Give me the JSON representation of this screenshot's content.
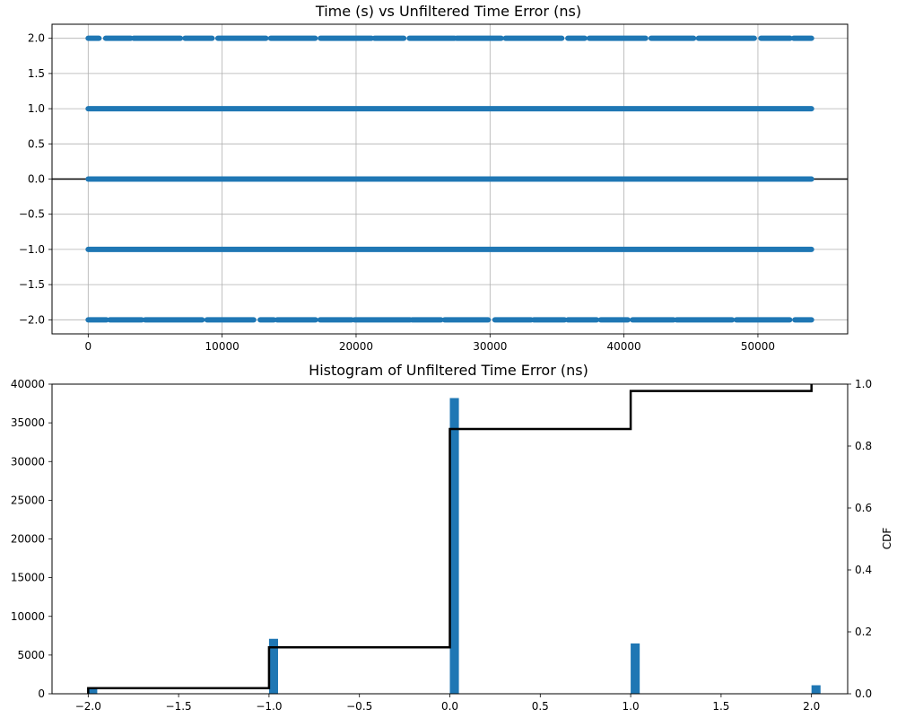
{
  "chart_data": [
    {
      "type": "scatter",
      "title": "Time (s) vs Unfiltered Time Error (ns)",
      "xlabel": "",
      "ylabel": "",
      "xlim": [
        -2700,
        56700
      ],
      "ylim": [
        -2.2,
        2.2
      ],
      "x_ticks": [
        0,
        10000,
        20000,
        30000,
        40000,
        50000
      ],
      "y_ticks": [
        -2.0,
        -1.5,
        -1.0,
        -0.5,
        0.0,
        0.5,
        1.0,
        1.5,
        2.0
      ],
      "grid": true,
      "zero_line": 0.0,
      "series": [
        {
          "y": 2.0,
          "x_range": [
            0,
            54000
          ],
          "density": "sparse"
        },
        {
          "y": 1.0,
          "x_range": [
            0,
            54000
          ],
          "density": "dense"
        },
        {
          "y": 0.0,
          "x_range": [
            0,
            54000
          ],
          "density": "dense"
        },
        {
          "y": -1.0,
          "x_range": [
            0,
            54000
          ],
          "density": "dense"
        },
        {
          "y": -2.0,
          "x_range": [
            0,
            54000
          ],
          "density": "sparse"
        }
      ],
      "marker_color": "#1f77b4",
      "zero_line_color": "#000000"
    },
    {
      "type": "bar",
      "title": "Histogram of Unfiltered Time Error (ns)",
      "xlabel": "",
      "ylabel": "",
      "ylabel_right": "CDF",
      "xlim": [
        -2.2,
        2.2
      ],
      "ylim": [
        0,
        40000
      ],
      "ylim_right": [
        0,
        1.0
      ],
      "x_ticks": [
        -2.0,
        -1.5,
        -1.0,
        -0.5,
        0.0,
        0.5,
        1.0,
        1.5,
        2.0
      ],
      "y_ticks": [
        0,
        5000,
        10000,
        15000,
        20000,
        25000,
        30000,
        35000,
        40000
      ],
      "y_ticks_right": [
        0.0,
        0.2,
        0.4,
        0.6,
        0.8,
        1.0
      ],
      "categories": [
        -2.0,
        -1.0,
        0.0,
        1.0,
        2.0
      ],
      "values": [
        800,
        7100,
        38200,
        6500,
        1100
      ],
      "cdf": [
        0.018,
        0.15,
        0.855,
        0.978,
        1.0
      ],
      "bar_color": "#1f77b4",
      "cdf_color": "#000000"
    }
  ]
}
